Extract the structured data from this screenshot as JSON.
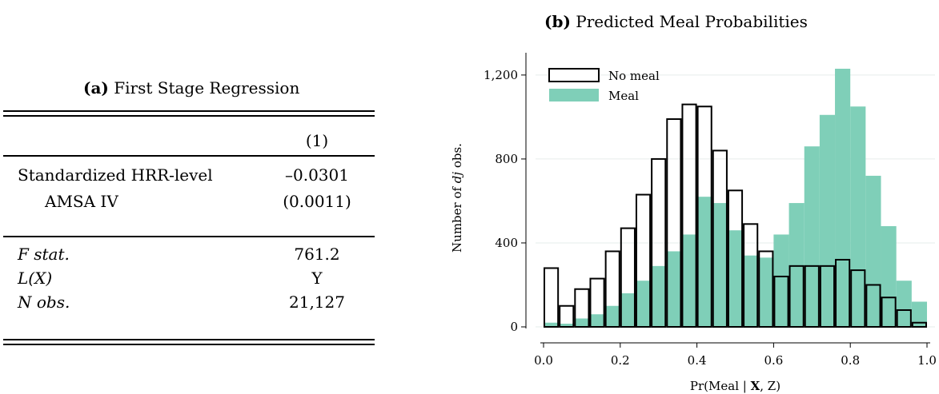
{
  "panel_a": {
    "caption_letter": "(a)",
    "caption_text": "First Stage Regression",
    "column_header": "(1)",
    "rows": [
      {
        "label": "Standardized HRR-level",
        "value": "–0.0301"
      },
      {
        "label": "AMSA IV",
        "value": "(0.0011)"
      },
      {
        "label": "F stat.",
        "value": "761.2"
      },
      {
        "label": "L(X)",
        "value": "Y"
      },
      {
        "label": "N obs.",
        "value": "21,127"
      }
    ]
  },
  "panel_b": {
    "caption_letter": "(b)",
    "caption_text": "Predicted Meal Probabilities"
  },
  "chart_data": {
    "type": "bar",
    "subtype": "overlaid-histogram",
    "title": "Predicted Meal Probabilities",
    "xlabel": "Pr(Meal | X, Z)",
    "ylabel": "Number of dj obs.",
    "xlim": [
      0,
      1
    ],
    "ylim": [
      0,
      1230
    ],
    "bin_width": 0.04,
    "bin_starts": [
      0.0,
      0.04,
      0.08,
      0.12,
      0.16,
      0.2,
      0.24,
      0.28,
      0.32,
      0.36,
      0.4,
      0.44,
      0.48,
      0.52,
      0.56,
      0.6,
      0.64,
      0.68,
      0.72,
      0.76,
      0.8,
      0.84,
      0.88,
      0.92,
      0.96
    ],
    "xticks": [
      "0.0",
      "0.2",
      "0.4",
      "0.6",
      "0.8",
      "1.0"
    ],
    "xtick_values": [
      0,
      0.2,
      0.4,
      0.6,
      0.8,
      1.0
    ],
    "yticks": [
      "0",
      "400",
      "800",
      "1,200"
    ],
    "ytick_values": [
      0,
      400,
      800,
      1200
    ],
    "grid": "horizontal",
    "legend_position": "top-left",
    "series": [
      {
        "name": "Meal",
        "color": "#7fcfb8",
        "values": [
          20,
          15,
          40,
          60,
          100,
          160,
          220,
          290,
          360,
          440,
          620,
          590,
          460,
          340,
          330,
          440,
          590,
          860,
          1010,
          1230,
          1050,
          720,
          480,
          220,
          120
        ]
      },
      {
        "name": "No meal",
        "color": "#ffffff",
        "stroke": "#000000",
        "values": [
          280,
          100,
          180,
          230,
          360,
          470,
          630,
          800,
          990,
          1060,
          1050,
          840,
          650,
          490,
          360,
          240,
          290,
          290,
          290,
          320,
          270,
          200,
          140,
          80,
          20
        ]
      }
    ]
  }
}
